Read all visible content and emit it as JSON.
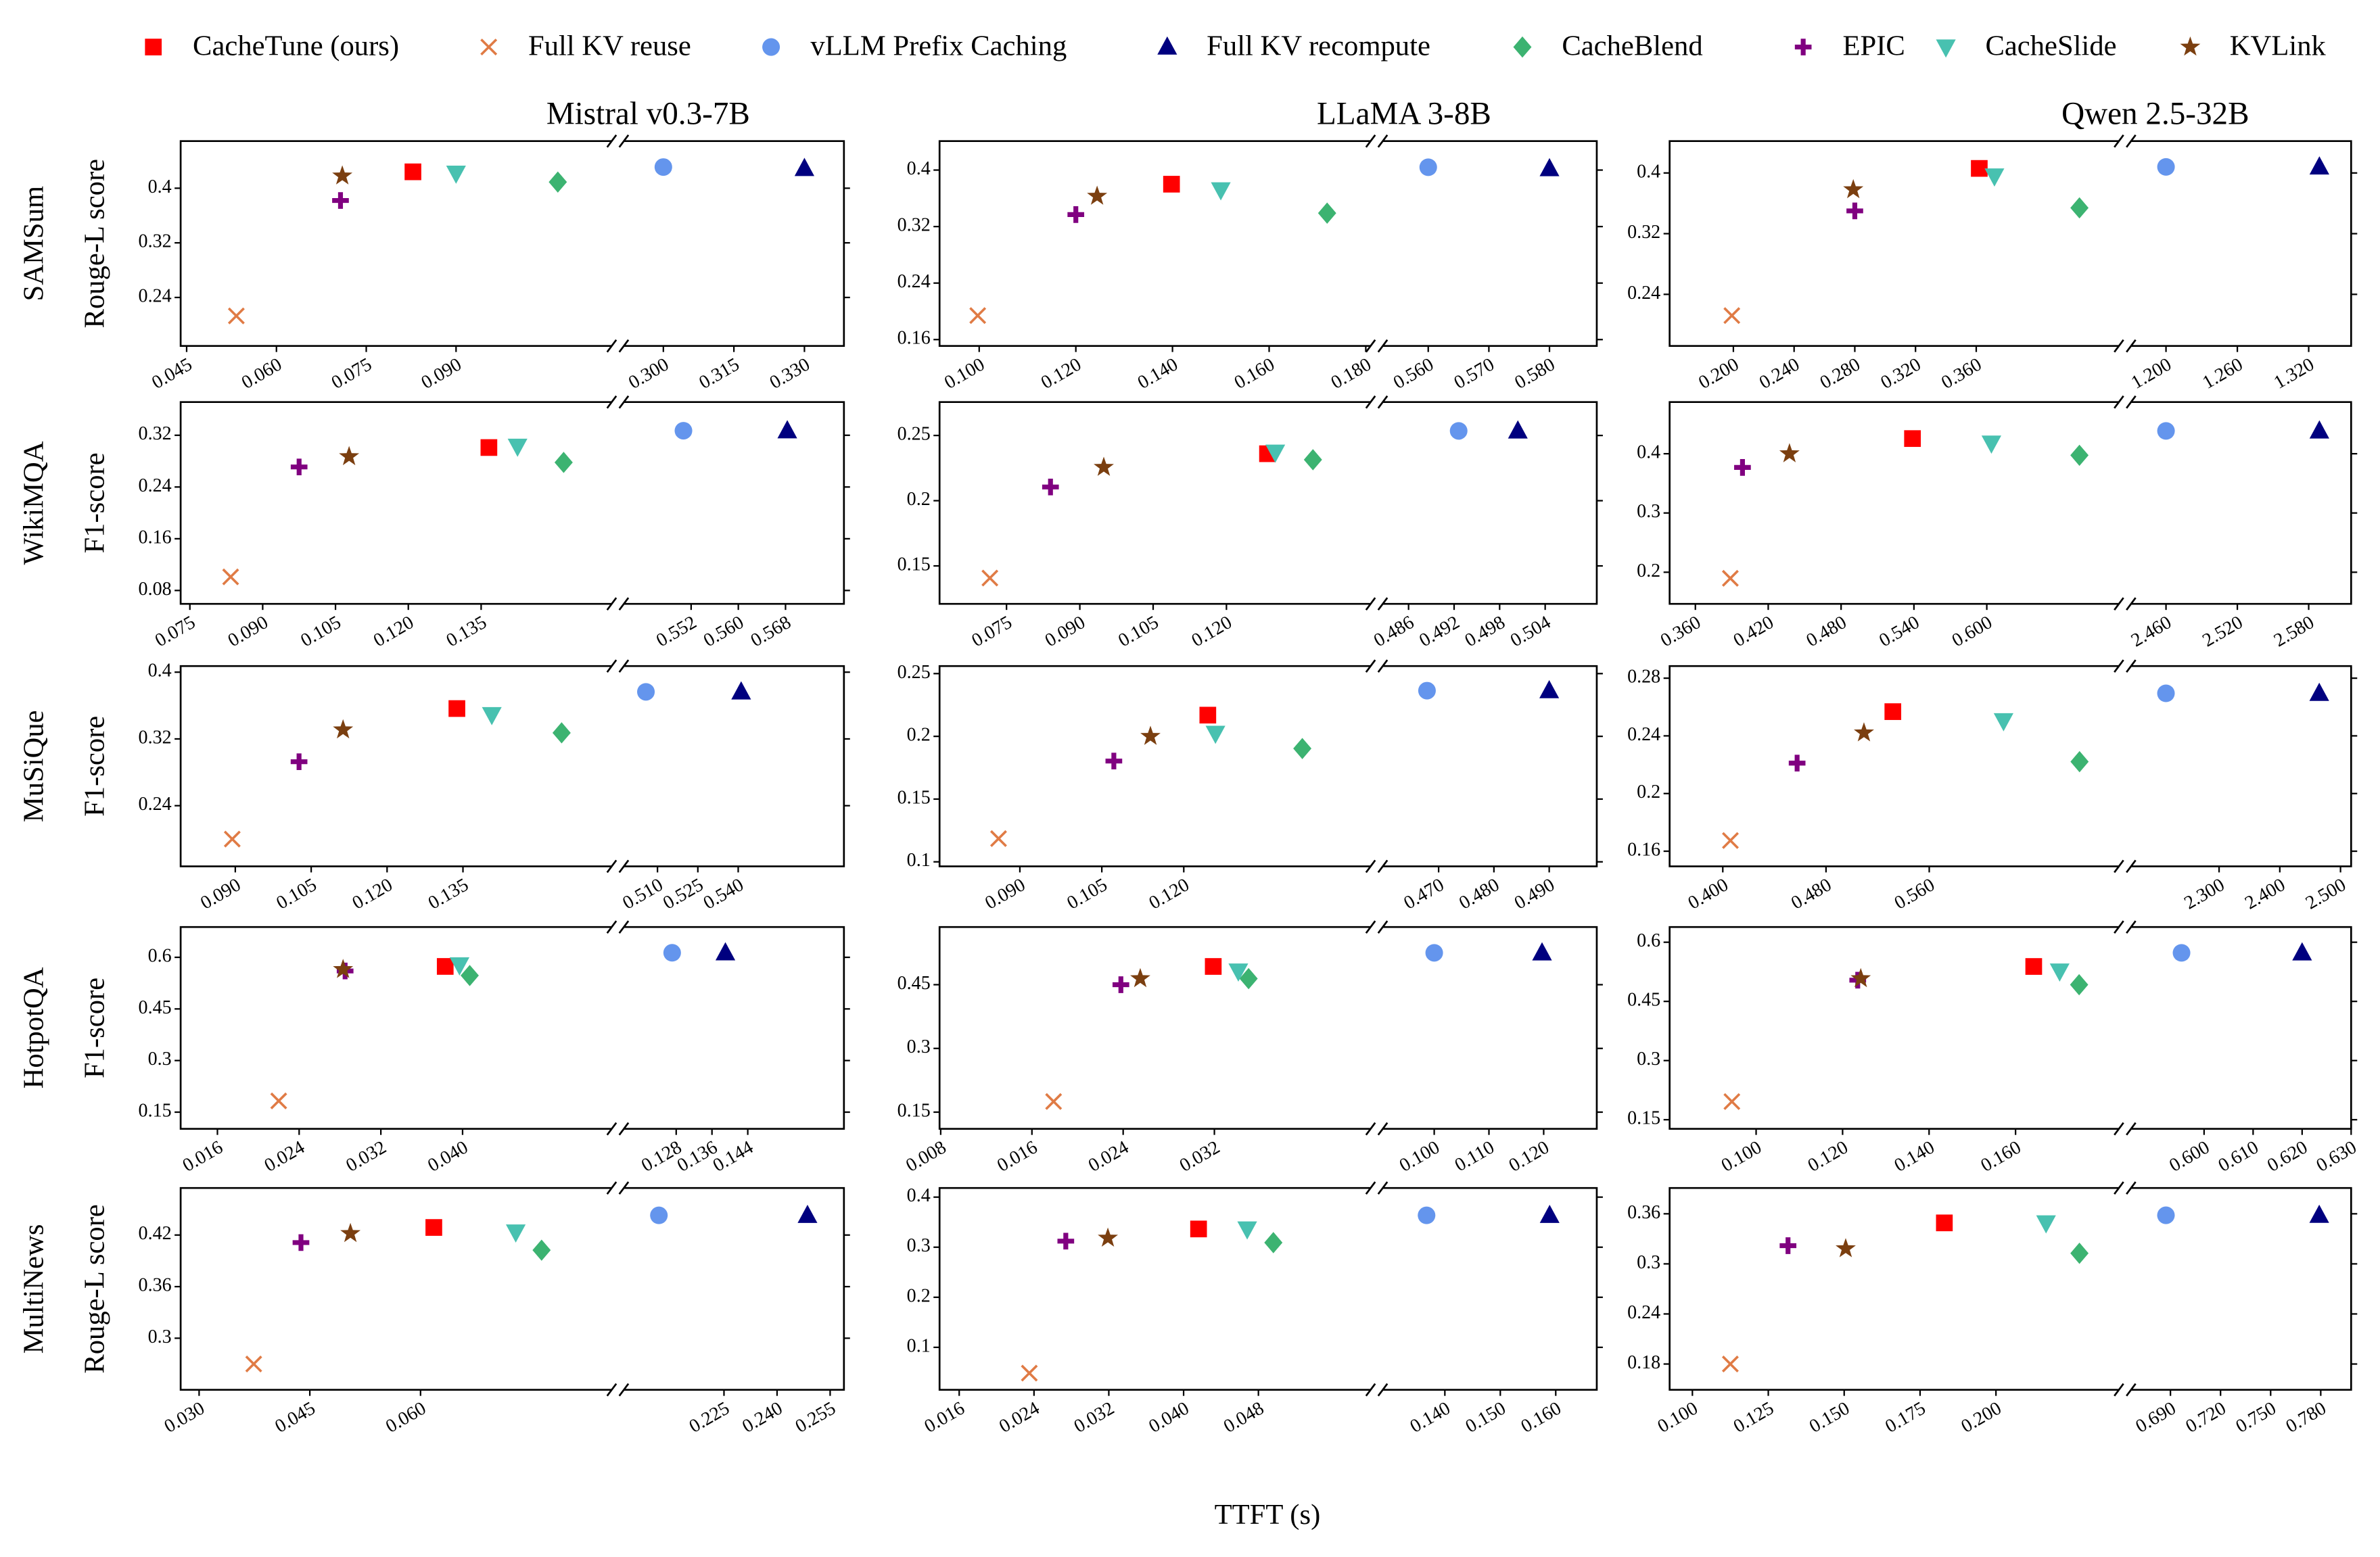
{
  "chart_data": {
    "type": "scatter",
    "xlabel": "TTFT (s)",
    "series": [
      {
        "name": "CacheTune (ours)",
        "color": "#ff0000",
        "marker": "square"
      },
      {
        "name": "Full KV reuse",
        "color": "#e07b45",
        "marker": "x"
      },
      {
        "name": "vLLM Prefix Caching",
        "color": "#6495ed",
        "marker": "circle"
      },
      {
        "name": "Full KV recompute",
        "color": "#00007f",
        "marker": "triangle-up"
      },
      {
        "name": "CacheBlend",
        "color": "#3cb371",
        "marker": "diamond"
      },
      {
        "name": "EPIC",
        "color": "#800080",
        "marker": "plus"
      },
      {
        "name": "CacheSlide",
        "color": "#48c1b0",
        "marker": "triangle-down"
      },
      {
        "name": "KVLink",
        "color": "#7b3f10",
        "marker": "star"
      }
    ],
    "columns": [
      "Mistral v0.3-7B",
      "LLaMA 3-8B",
      "Qwen 2.5-32B"
    ],
    "rows": [
      {
        "name": "SAMSum",
        "ylabel": "Rouge-L score"
      },
      {
        "name": "WikiMQA",
        "ylabel": "F1-score"
      },
      {
        "name": "MuSiQue",
        "ylabel": "F1-score"
      },
      {
        "name": "HotpotQA",
        "ylabel": "F1-score"
      },
      {
        "name": "MultiNews",
        "ylabel": "Rouge-L score"
      }
    ],
    "panels": [
      {
        "x": [
          0.0828,
          0.0533,
          0.3,
          0.33,
          0.107,
          0.0707,
          0.09,
          0.071
        ],
        "y": [
          0.424,
          0.213,
          0.431,
          0.429,
          0.409,
          0.382,
          0.422,
          0.418
        ],
        "xlim": [
          0.044,
          0.116
        ],
        "x2lim": [
          0.2916,
          0.3384
        ],
        "ylim": [
          0.169,
          0.469
        ],
        "xticks": [
          0.045,
          {
            "value": 0.06,
            "label": "0.060"
          },
          0.075,
          {
            "value": 0.09,
            "label": "0.090"
          }
        ],
        "x2ticks": [
          {
            "value": 0.3,
            "label": "0.300"
          },
          0.315,
          {
            "value": 0.33,
            "label": "0.330"
          }
        ],
        "yticks": [
          0.4,
          0.32,
          0.24
        ]
      },
      {
        "x": [
          0.1398,
          0.0997,
          0.56,
          0.58,
          0.172,
          0.12,
          0.15,
          0.1244
        ],
        "y": [
          0.38,
          0.194,
          0.404,
          0.402,
          0.339,
          0.337,
          0.372,
          0.363
        ],
        "xlim": [
          0.0918,
          0.181
        ],
        "x2lim": [
          0.5525,
          0.5878
        ],
        "ylim": [
          0.151,
          0.441
        ],
        "xticks": [
          {
            "value": 0.1,
            "label": "0.100"
          },
          {
            "value": 0.12,
            "label": "0.120"
          },
          {
            "value": 0.14,
            "label": "0.140"
          },
          {
            "value": 0.16,
            "label": "0.160"
          },
          {
            "value": 0.18,
            "label": "0.180"
          }
        ],
        "x2ticks": [
          {
            "value": 0.56,
            "label": "0.560"
          },
          {
            "value": 0.57,
            "label": "0.570"
          },
          {
            "value": 0.58,
            "label": "0.580"
          }
        ],
        "yticks": [
          0.4,
          0.32,
          0.24,
          0.16
        ]
      },
      {
        "x": [
          0.362,
          0.199,
          1.2,
          1.329,
          0.428,
          0.28,
          0.372,
          0.279
        ],
        "y": [
          0.406,
          0.212,
          0.408,
          0.408,
          0.354,
          0.35,
          0.396,
          0.378
        ],
        "xlim": [
          0.158,
          0.454
        ],
        "x2lim": [
          1.1706,
          1.3557
        ],
        "ylim": [
          0.172,
          0.442
        ],
        "xticks": [
          {
            "value": 0.2,
            "label": "0.200"
          },
          {
            "value": 0.24,
            "label": "0.240"
          },
          {
            "value": 0.28,
            "label": "0.280"
          },
          {
            "value": 0.32,
            "label": "0.320"
          },
          {
            "value": 0.36,
            "label": "0.360"
          }
        ],
        "x2ticks": [
          {
            "value": 1.2,
            "label": "1.200"
          },
          {
            "value": 1.26,
            "label": "1.260"
          },
          {
            "value": 1.32,
            "label": "1.320"
          }
        ],
        "yticks": [
          0.4,
          0.32,
          0.24
        ]
      },
      {
        "x": [
          0.1366,
          0.0834,
          0.5507,
          0.5683,
          0.152,
          0.0975,
          0.1425,
          0.1078
        ],
        "y": [
          0.301,
          0.101,
          0.327,
          0.327,
          0.278,
          0.271,
          0.303,
          0.287
        ],
        "xlim": [
          0.0731,
          0.1619
        ],
        "x2lim": [
          0.5406,
          0.5779
        ],
        "ylim": [
          0.0593,
          0.3713
        ],
        "xticks": [
          0.075,
          {
            "value": 0.09,
            "label": "0.090"
          },
          0.105,
          {
            "value": 0.12,
            "label": "0.120"
          },
          0.135
        ],
        "x2ticks": [
          0.552,
          {
            "value": 0.56,
            "label": "0.560"
          },
          0.568
        ],
        "yticks": [
          0.32,
          0.24,
          0.16,
          0.08
        ]
      },
      {
        "x": [
          0.1284,
          0.0716,
          0.4926,
          0.5004,
          0.1377,
          0.084,
          0.13,
          0.0949
        ],
        "y": [
          0.236,
          0.1407,
          0.2535,
          0.2535,
          0.2314,
          0.2105,
          0.2372,
          0.2256
        ],
        "xlim": [
          0.0613,
          0.1495
        ],
        "x2lim": [
          0.4826,
          0.5108
        ],
        "ylim": [
          0.1209,
          0.2756
        ],
        "xticks": [
          0.075,
          {
            "value": 0.09,
            "label": "0.090"
          },
          0.105,
          {
            "value": 0.12,
            "label": "0.120"
          }
        ],
        "x2ticks": [
          0.486,
          0.492,
          0.498,
          0.504
        ],
        "yticks": [
          0.25,
          0.2,
          0.15
        ]
      },
      {
        "x": [
          0.5388,
          0.3888,
          2.46,
          2.589,
          0.6763,
          0.3988,
          0.6038,
          0.4375
        ],
        "y": [
          0.4256,
          0.1897,
          0.4385,
          0.4385,
          0.3974,
          0.3769,
          0.4179,
          0.4
        ],
        "xlim": [
          0.3388,
          0.7088
        ],
        "x2lim": [
          2.4306,
          2.6157
        ],
        "ylim": [
          0.1466,
          0.4872
        ],
        "xticks": [
          {
            "value": 0.36,
            "label": "0.360"
          },
          {
            "value": 0.42,
            "label": "0.420"
          },
          {
            "value": 0.48,
            "label": "0.480"
          },
          {
            "value": 0.54,
            "label": "0.540"
          },
          {
            "value": 0.6,
            "label": "0.600"
          }
        ],
        "x2ticks": [
          {
            "value": 2.46,
            "label": "2.460"
          },
          {
            "value": 2.52,
            "label": "2.520"
          },
          {
            "value": 2.58,
            "label": "2.580"
          }
        ],
        "yticks": [
          0.4,
          0.3,
          0.2
        ]
      },
      {
        "x": [
          0.1338,
          0.0894,
          0.5057,
          0.5411,
          0.1545,
          0.1026,
          0.1407,
          0.1113
        ],
        "y": [
          0.3564,
          0.2,
          0.3764,
          0.3764,
          0.3273,
          0.2927,
          0.3491,
          0.3309
        ],
        "xlim": [
          0.0792,
          0.1644
        ],
        "x2lim": [
          0.4975,
          0.5793
        ],
        "ylim": [
          0.1673,
          0.4073
        ],
        "xticks": [
          {
            "value": 0.09,
            "label": "0.090"
          },
          0.105,
          {
            "value": 0.12,
            "label": "0.120"
          },
          0.135
        ],
        "x2ticks": [
          {
            "value": 0.51,
            "label": "0.510"
          },
          0.525,
          {
            "value": 0.54,
            "label": "0.540"
          }
        ],
        "yticks": [
          0.4,
          0.32,
          0.24
        ]
      },
      {
        "x": [
          0.1244,
          0.0861,
          0.4679,
          0.49,
          0.1417,
          0.1072,
          0.1258,
          0.1139
        ],
        "y": [
          0.2169,
          0.1185,
          0.2364,
          0.2364,
          0.1903,
          0.1803,
          0.2024,
          0.2
        ],
        "xlim": [
          0.0753,
          0.1542
        ],
        "x2lim": [
          0.4599,
          0.4986
        ],
        "ylim": [
          0.0964,
          0.256
        ],
        "xticks": [
          {
            "value": 0.09,
            "label": "0.090"
          },
          0.105,
          {
            "value": 0.12,
            "label": "0.120"
          }
        ],
        "x2ticks": [
          {
            "value": 0.47,
            "label": "0.470"
          },
          {
            "value": 0.48,
            "label": "0.480"
          },
          {
            "value": 0.49,
            "label": "0.490"
          }
        ],
        "yticks": [
          0.25,
          0.2,
          0.15,
          0.1
        ]
      },
      {
        "x": [
          0.5318,
          0.4059,
          2.2125,
          2.465,
          0.6765,
          0.4576,
          0.6176,
          0.5094
        ],
        "y": [
          0.2568,
          0.1674,
          0.2695,
          0.2695,
          0.2221,
          0.2211,
          0.2505,
          0.2421
        ],
        "xlim": [
          0.3588,
          0.707
        ],
        "x2lim": [
          2.155,
          2.5175
        ],
        "ylim": [
          0.1495,
          0.2884
        ],
        "xticks": [
          {
            "value": 0.4,
            "label": "0.400"
          },
          {
            "value": 0.48,
            "label": "0.480"
          },
          {
            "value": 0.56,
            "label": "0.560"
          }
        ],
        "x2ticks": [
          {
            "value": 2.3,
            "label": "2.300"
          },
          {
            "value": 2.4,
            "label": "2.400"
          },
          {
            "value": 2.5,
            "label": "2.500"
          }
        ],
        "yticks": [
          0.28,
          0.24,
          0.2,
          0.16
        ]
      },
      {
        "x": [
          0.0383,
          0.022,
          0.1271,
          0.139,
          0.0407,
          0.0285,
          0.0397,
          0.0283
        ],
        "y": [
          0.5735,
          0.1826,
          0.6132,
          0.6132,
          0.5471,
          0.5603,
          0.5779,
          0.5647
        ],
        "xlim": [
          0.0124,
          0.0546
        ],
        "x2lim": [
          0.1163,
          0.1655
        ],
        "ylim": [
          0.1015,
          0.688
        ],
        "xticks": [
          0.016,
          0.024,
          0.032,
          {
            "value": 0.04,
            "label": "0.040"
          }
        ],
        "x2ticks": [
          0.128,
          0.136,
          0.144
        ],
        "yticks": [
          0.6,
          0.45,
          0.3,
          0.15
        ]
      },
      {
        "x": [
          0.0319,
          0.0179,
          0.1,
          0.1197,
          0.035,
          0.0238,
          0.0341,
          0.0255
        ],
        "y": [
          0.4929,
          0.175,
          0.525,
          0.525,
          0.4643,
          0.45,
          0.4821,
          0.4643
        ],
        "xlim": [
          0.0079,
          0.0457
        ],
        "x2lim": [
          0.0906,
          0.1297
        ],
        "ylim": [
          0.1107,
          0.5857
        ],
        "xticks": [
          0.008,
          0.016,
          0.024,
          0.032
        ],
        "x2ticks": [
          {
            "value": 0.1,
            "label": "0.100"
          },
          {
            "value": 0.11,
            "label": "0.110"
          },
          {
            "value": 0.12,
            "label": "0.120"
          }
        ],
        "yticks": [
          0.45,
          0.3,
          0.15
        ]
      },
      {
        "x": [
          0.1642,
          0.0944,
          0.5954,
          0.62,
          0.1747,
          0.1235,
          0.1702,
          0.1242
        ],
        "y": [
          0.5385,
          0.196,
          0.5731,
          0.5731,
          0.4923,
          0.5038,
          0.5269,
          0.5077
        ],
        "xlim": [
          0.08,
          0.1839
        ],
        "x2lim": [
          0.5851,
          0.63
        ],
        "ylim": [
          0.1269,
          0.6385
        ],
        "xticks": [
          {
            "value": 0.1,
            "label": "0.100"
          },
          {
            "value": 0.12,
            "label": "0.120"
          },
          {
            "value": 0.14,
            "label": "0.140"
          },
          {
            "value": 0.16,
            "label": "0.160"
          }
        ],
        "x2ticks": [
          {
            "value": 0.6,
            "label": "0.600"
          },
          {
            "value": 0.61,
            "label": "0.610"
          },
          {
            "value": 0.62,
            "label": "0.620"
          },
          {
            "value": 0.63,
            "label": "0.630"
          }
        ],
        "yticks": [
          0.6,
          0.45,
          0.3,
          0.15
        ]
      },
      {
        "x": [
          0.0618,
          0.0374,
          0.2066,
          0.2486,
          0.0764,
          0.0438,
          0.0729,
          0.0505
        ],
        "y": [
          0.4288,
          0.27,
          0.4429,
          0.4429,
          0.4024,
          0.4112,
          0.4235,
          0.4218
        ],
        "xlim": [
          0.0275,
          0.0859
        ],
        "x2lim": [
          0.1967,
          0.2589
        ],
        "ylim": [
          0.24,
          0.4747
        ],
        "xticks": [
          {
            "value": 0.03,
            "label": "0.030"
          },
          0.045,
          {
            "value": 0.06,
            "label": "0.060"
          }
        ],
        "x2ticks": [
          0.225,
          {
            "value": 0.24,
            "label": "0.240"
          },
          0.255
        ],
        "yticks": [
          0.42,
          0.36,
          0.3
        ]
      },
      {
        "x": [
          0.0416,
          0.0235,
          0.1367,
          0.1589,
          0.0496,
          0.0274,
          0.0468,
          0.0319
        ],
        "y": [
          0.3364,
          0.0485,
          0.3636,
          0.3636,
          0.3091,
          0.3121,
          0.3364,
          0.3182
        ],
        "xlim": [
          0.0139,
          0.06
        ],
        "x2lim": [
          0.1288,
          0.1674
        ],
        "ylim": [
          0.0152,
          0.4182
        ],
        "xticks": [
          0.016,
          0.024,
          0.032,
          {
            "value": 0.04,
            "label": "0.040"
          },
          0.048
        ],
        "x2ticks": [
          {
            "value": 0.14,
            "label": "0.140"
          },
          {
            "value": 0.15,
            "label": "0.150"
          },
          {
            "value": 0.16,
            "label": "0.160"
          }
        ],
        "yticks": [
          0.4,
          0.3,
          0.2,
          0.1
        ]
      },
      {
        "x": [
          0.183,
          0.1125,
          0.6873,
          0.7791,
          0.2275,
          0.1315,
          0.2165,
          0.1505
        ],
        "y": [
          0.3491,
          0.18,
          0.3582,
          0.3582,
          0.3127,
          0.3218,
          0.3491,
          0.3182
        ],
        "xlim": [
          0.0925,
          0.2405
        ],
        "x2lim": [
          0.6664,
          0.7982
        ],
        "ylim": [
          0.1491,
          0.3909
        ],
        "xticks": [
          {
            "value": 0.1,
            "label": "0.100"
          },
          0.125,
          {
            "value": 0.15,
            "label": "0.150"
          },
          0.175,
          {
            "value": 0.2,
            "label": "0.200"
          }
        ],
        "x2ticks": [
          {
            "value": 0.69,
            "label": "0.690"
          },
          {
            "value": 0.72,
            "label": "0.720"
          },
          {
            "value": 0.75,
            "label": "0.750"
          },
          {
            "value": 0.78,
            "label": "0.780"
          }
        ],
        "yticks": [
          0.36,
          0.3,
          0.24,
          0.18
        ]
      }
    ]
  }
}
